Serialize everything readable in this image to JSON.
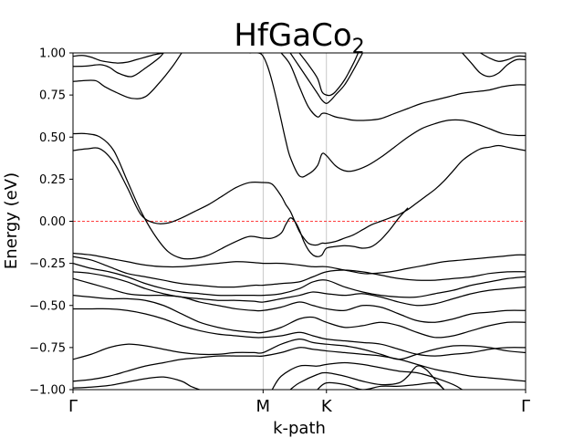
{
  "chart_data": {
    "type": "line",
    "title": "HfGaCo",
    "title_subscript": "2",
    "xlabel": "k-path",
    "ylabel": "Energy (eV)",
    "ylim": [
      -1.0,
      1.0
    ],
    "xlim": [
      0,
      1
    ],
    "x_ticks": [
      {
        "label": "Γ",
        "pos": 0.0
      },
      {
        "label": "M",
        "pos": 0.42
      },
      {
        "label": "K",
        "pos": 0.56
      },
      {
        "label": "Γ",
        "pos": 1.0
      }
    ],
    "y_ticks": [
      {
        "value": 1.0,
        "label": "1.00"
      },
      {
        "value": 0.75,
        "label": "0.75"
      },
      {
        "value": 0.5,
        "label": "0.50"
      },
      {
        "value": 0.25,
        "label": "0.25"
      },
      {
        "value": 0.0,
        "label": "0.00"
      },
      {
        "value": -0.25,
        "label": "−0.25"
      },
      {
        "value": -0.5,
        "label": "−0.50"
      },
      {
        "value": -0.75,
        "label": "−0.75"
      },
      {
        "value": -1.0,
        "label": "−1.00"
      }
    ],
    "fermi_level": 0.0,
    "fermi_color": "#ff0000",
    "vline_color": "#bbbbbb",
    "line_color": "#000000",
    "bands": [
      {
        "x": [
          0,
          0.02,
          0.04,
          0.06,
          0.08,
          0.1,
          0.12,
          0.14,
          0.16,
          0.18,
          0.2
        ],
        "y": [
          0.98,
          0.985,
          0.975,
          0.955,
          0.945,
          0.94,
          0.945,
          0.96,
          0.975,
          0.99,
          1.0
        ]
      },
      {
        "x": [
          0,
          0.03,
          0.06,
          0.08,
          0.1,
          0.13,
          0.16,
          0.19,
          0.2
        ],
        "y": [
          0.92,
          0.922,
          0.93,
          0.915,
          0.88,
          0.86,
          0.91,
          0.97,
          1.0
        ]
      },
      {
        "x": [
          0,
          0.02,
          0.05,
          0.07,
          0.1,
          0.13,
          0.16,
          0.19,
          0.22,
          0.24
        ],
        "y": [
          0.83,
          0.835,
          0.835,
          0.8,
          0.76,
          0.73,
          0.74,
          0.82,
          0.92,
          1.0
        ]
      },
      {
        "x": [
          0,
          0.03,
          0.06,
          0.09,
          0.12,
          0.15,
          0.18,
          0.21,
          0.24,
          0.27,
          0.3,
          0.33,
          0.36,
          0.39,
          0.42,
          0.44,
          0.46,
          0.47,
          0.48,
          0.49,
          0.5,
          0.51,
          0.52,
          0.53,
          0.54,
          0.55,
          0.56,
          0.58,
          0.6,
          0.62,
          0.64,
          0.66,
          0.68,
          0.7,
          0.72,
          0.74
        ],
        "y": [
          0.52,
          0.52,
          0.5,
          0.42,
          0.24,
          0.06,
          -0.08,
          -0.18,
          -0.22,
          -0.22,
          -0.2,
          -0.16,
          -0.12,
          -0.09,
          -0.1,
          -0.1,
          -0.07,
          -0.02,
          0.02,
          0.0,
          -0.05,
          -0.12,
          -0.17,
          -0.2,
          -0.21,
          -0.2,
          -0.16,
          -0.15,
          -0.145,
          -0.15,
          -0.16,
          -0.15,
          -0.11,
          -0.05,
          0.02,
          0.08
        ]
      },
      {
        "x": [
          0,
          0.03,
          0.06,
          0.09,
          0.12,
          0.15,
          0.18,
          0.21,
          0.24,
          0.27,
          0.3,
          0.33,
          0.36,
          0.39,
          0.42,
          0.44,
          0.46,
          0.47,
          0.48,
          0.49,
          0.5,
          0.51,
          0.52,
          0.53,
          0.54,
          0.55,
          0.56,
          0.58,
          0.6,
          0.62,
          0.64,
          0.66,
          0.68,
          0.7,
          0.72,
          0.74,
          0.76,
          0.78,
          0.8,
          0.82,
          0.84,
          0.86,
          0.88,
          0.9,
          0.92,
          0.94,
          0.96,
          0.98,
          1.0
        ],
        "y": [
          0.42,
          0.43,
          0.43,
          0.35,
          0.2,
          0.04,
          -0.01,
          -0.01,
          0.02,
          0.06,
          0.1,
          0.15,
          0.2,
          0.23,
          0.23,
          0.22,
          0.15,
          0.1,
          0.06,
          0.0,
          -0.06,
          -0.1,
          -0.13,
          -0.14,
          -0.14,
          -0.13,
          -0.13,
          -0.12,
          -0.1,
          -0.08,
          -0.05,
          -0.02,
          0.0,
          0.02,
          0.04,
          0.07,
          0.11,
          0.15,
          0.19,
          0.24,
          0.3,
          0.36,
          0.4,
          0.43,
          0.44,
          0.45,
          0.44,
          0.43,
          0.42
        ]
      },
      {
        "x": [
          0.39,
          0.41,
          0.42,
          0.43,
          0.44,
          0.45,
          0.46,
          0.47,
          0.48,
          0.5,
          0.52,
          0.54,
          0.55,
          0.56,
          0.58,
          0.6,
          0.62,
          0.65,
          0.68,
          0.71,
          0.74,
          0.77,
          0.8,
          0.83,
          0.86,
          0.89,
          0.92,
          0.95,
          0.98,
          1.0
        ],
        "y": [
          1.0,
          1.0,
          0.98,
          0.92,
          0.83,
          0.72,
          0.6,
          0.48,
          0.38,
          0.27,
          0.28,
          0.33,
          0.4,
          0.39,
          0.33,
          0.3,
          0.3,
          0.33,
          0.38,
          0.44,
          0.5,
          0.55,
          0.58,
          0.6,
          0.6,
          0.58,
          0.55,
          0.52,
          0.51,
          0.51
        ]
      },
      {
        "x": [
          0.46,
          0.48,
          0.5,
          0.52,
          0.54,
          0.55,
          0.56,
          0.58,
          0.6,
          0.62,
          0.65,
          0.68,
          0.71,
          0.74,
          0.77,
          0.8,
          0.83,
          0.86,
          0.89,
          0.92,
          0.95,
          0.98,
          1.0
        ],
        "y": [
          1.0,
          0.93,
          0.8,
          0.68,
          0.62,
          0.64,
          0.64,
          0.62,
          0.61,
          0.6,
          0.6,
          0.61,
          0.64,
          0.67,
          0.7,
          0.72,
          0.74,
          0.76,
          0.77,
          0.78,
          0.8,
          0.81,
          0.81
        ]
      },
      {
        "x": [
          0.48,
          0.5,
          0.52,
          0.54,
          0.55,
          0.56,
          0.57,
          0.58,
          0.6,
          0.62,
          0.64
        ],
        "y": [
          1.0,
          0.92,
          0.84,
          0.76,
          0.72,
          0.7,
          0.72,
          0.75,
          0.81,
          0.9,
          1.0
        ]
      },
      {
        "x": [
          0.5,
          0.52,
          0.54,
          0.55,
          0.56,
          0.57,
          0.58,
          0.6,
          0.62,
          0.63
        ],
        "y": [
          1.0,
          0.93,
          0.85,
          0.77,
          0.75,
          0.75,
          0.77,
          0.84,
          0.94,
          1.0
        ]
      },
      {
        "x": [
          0.86,
          0.88,
          0.9,
          0.92,
          0.94,
          0.96,
          0.98,
          1.0
        ],
        "y": [
          1.0,
          0.94,
          0.88,
          0.86,
          0.88,
          0.93,
          0.96,
          0.96
        ]
      },
      {
        "x": [
          0.9,
          0.92,
          0.94,
          0.96,
          0.98,
          1.0
        ],
        "y": [
          1.0,
          0.97,
          0.95,
          0.96,
          0.98,
          0.98
        ]
      },
      {
        "x": [
          0,
          0.04,
          0.08,
          0.12,
          0.16,
          0.2,
          0.24,
          0.28,
          0.32,
          0.36,
          0.4,
          0.42,
          0.46,
          0.5,
          0.53,
          0.56,
          0.6,
          0.64,
          0.66,
          0.7,
          0.74,
          0.78,
          0.82,
          0.86,
          0.9,
          0.94,
          0.98,
          1.0
        ],
        "y": [
          -0.19,
          -0.2,
          -0.22,
          -0.24,
          -0.26,
          -0.27,
          -0.27,
          -0.26,
          -0.25,
          -0.24,
          -0.245,
          -0.25,
          -0.25,
          -0.26,
          -0.27,
          -0.27,
          -0.29,
          -0.31,
          -0.31,
          -0.3,
          -0.28,
          -0.26,
          -0.24,
          -0.23,
          -0.22,
          -0.21,
          -0.2,
          -0.2
        ]
      },
      {
        "x": [
          0,
          0.04,
          0.08,
          0.12,
          0.16,
          0.2,
          0.24,
          0.28,
          0.32,
          0.36,
          0.4,
          0.42,
          0.46,
          0.5,
          0.53,
          0.56,
          0.6,
          0.64,
          0.68,
          0.72,
          0.76,
          0.8,
          0.84,
          0.88,
          0.92,
          0.96,
          1.0
        ],
        "y": [
          -0.21,
          -0.23,
          -0.27,
          -0.31,
          -0.33,
          -0.35,
          -0.37,
          -0.38,
          -0.39,
          -0.39,
          -0.38,
          -0.38,
          -0.37,
          -0.36,
          -0.33,
          -0.3,
          -0.29,
          -0.3,
          -0.32,
          -0.34,
          -0.35,
          -0.35,
          -0.34,
          -0.33,
          -0.31,
          -0.3,
          -0.3
        ]
      },
      {
        "x": [
          0,
          0.04,
          0.08,
          0.12,
          0.16,
          0.2,
          0.24,
          0.28,
          0.32,
          0.36,
          0.4,
          0.42,
          0.46,
          0.5,
          0.53,
          0.56,
          0.6,
          0.64,
          0.68,
          0.72,
          0.76,
          0.8,
          0.84,
          0.88,
          0.92,
          0.96,
          1.0
        ],
        "y": [
          -0.25,
          -0.28,
          -0.3,
          -0.33,
          -0.37,
          -0.4,
          -0.42,
          -0.43,
          -0.44,
          -0.44,
          -0.44,
          -0.44,
          -0.43,
          -0.4,
          -0.36,
          -0.35,
          -0.39,
          -0.42,
          -0.44,
          -0.45,
          -0.45,
          -0.43,
          -0.41,
          -0.38,
          -0.36,
          -0.34,
          -0.33
        ]
      },
      {
        "x": [
          0,
          0.04,
          0.08,
          0.12,
          0.16,
          0.2,
          0.24,
          0.28,
          0.32,
          0.36,
          0.4,
          0.42,
          0.46,
          0.5,
          0.53,
          0.56,
          0.6,
          0.64,
          0.68,
          0.72,
          0.76,
          0.8,
          0.84,
          0.88,
          0.92,
          0.96,
          1.0
        ],
        "y": [
          -0.3,
          -0.31,
          -0.33,
          -0.36,
          -0.4,
          -0.43,
          -0.45,
          -0.46,
          -0.47,
          -0.47,
          -0.475,
          -0.48,
          -0.46,
          -0.44,
          -0.42,
          -0.43,
          -0.44,
          -0.43,
          -0.45,
          -0.48,
          -0.5,
          -0.49,
          -0.46,
          -0.43,
          -0.41,
          -0.4,
          -0.39
        ]
      },
      {
        "x": [
          0,
          0.04,
          0.08,
          0.12,
          0.16,
          0.2,
          0.24,
          0.28,
          0.32,
          0.36,
          0.4,
          0.42,
          0.46,
          0.5,
          0.53,
          0.56,
          0.6,
          0.64,
          0.68,
          0.72,
          0.76,
          0.8,
          0.84,
          0.88,
          0.92,
          0.96,
          1.0
        ],
        "y": [
          -0.34,
          -0.37,
          -0.4,
          -0.43,
          -0.44,
          -0.44,
          -0.45,
          -0.48,
          -0.5,
          -0.52,
          -0.53,
          -0.53,
          -0.51,
          -0.48,
          -0.5,
          -0.52,
          -0.53,
          -0.5,
          -0.51,
          -0.55,
          -0.59,
          -0.6,
          -0.58,
          -0.55,
          -0.54,
          -0.53,
          -0.53
        ]
      },
      {
        "x": [
          0,
          0.04,
          0.08,
          0.12,
          0.16,
          0.2,
          0.24,
          0.28,
          0.32,
          0.36,
          0.4,
          0.42,
          0.46,
          0.5,
          0.53,
          0.56,
          0.6,
          0.64,
          0.68,
          0.72,
          0.76,
          0.8,
          0.84,
          0.88,
          0.92,
          0.96,
          1.0
        ],
        "y": [
          -0.44,
          -0.45,
          -0.46,
          -0.46,
          -0.47,
          -0.5,
          -0.55,
          -0.6,
          -0.63,
          -0.65,
          -0.66,
          -0.66,
          -0.63,
          -0.58,
          -0.57,
          -0.6,
          -0.63,
          -0.62,
          -0.6,
          -0.62,
          -0.66,
          -0.69,
          -0.68,
          -0.65,
          -0.62,
          -0.6,
          -0.6
        ]
      },
      {
        "x": [
          0,
          0.04,
          0.08,
          0.12,
          0.16,
          0.2,
          0.24,
          0.28,
          0.32,
          0.36,
          0.4,
          0.42,
          0.46,
          0.5,
          0.53,
          0.56,
          0.6,
          0.64,
          0.68,
          0.72,
          0.76,
          0.8,
          0.84,
          0.88,
          0.92,
          0.96,
          1.0
        ],
        "y": [
          -0.52,
          -0.52,
          -0.52,
          -0.53,
          -0.55,
          -0.58,
          -0.62,
          -0.65,
          -0.67,
          -0.68,
          -0.69,
          -0.69,
          -0.68,
          -0.66,
          -0.68,
          -0.7,
          -0.71,
          -0.72,
          -0.73,
          -0.76,
          -0.79,
          -0.8,
          -0.79,
          -0.78,
          -0.76,
          -0.75,
          -0.75
        ]
      },
      {
        "x": [
          0,
          0.04,
          0.08,
          0.12,
          0.16,
          0.2,
          0.24,
          0.28,
          0.32,
          0.36,
          0.4,
          0.42,
          0.46,
          0.5,
          0.53,
          0.56,
          0.6,
          0.64,
          0.68,
          0.72,
          0.76,
          0.8,
          0.84,
          0.88,
          0.92,
          0.96,
          1.0
        ],
        "y": [
          -0.82,
          -0.79,
          -0.75,
          -0.73,
          -0.74,
          -0.76,
          -0.78,
          -0.79,
          -0.79,
          -0.78,
          -0.78,
          -0.78,
          -0.73,
          -0.7,
          -0.72,
          -0.73,
          -0.74,
          -0.76,
          -0.79,
          -0.82,
          -0.79,
          -0.76,
          -0.74,
          -0.74,
          -0.75,
          -0.77,
          -0.78
        ]
      },
      {
        "x": [
          0,
          0.04,
          0.08,
          0.12,
          0.16,
          0.2,
          0.24,
          0.28,
          0.32,
          0.36,
          0.4,
          0.42,
          0.46,
          0.5,
          0.53,
          0.56,
          0.6,
          0.64,
          0.68,
          0.72,
          0.76,
          0.8,
          0.84,
          0.88,
          0.92,
          0.96,
          1.0
        ],
        "y": [
          -0.95,
          -0.94,
          -0.92,
          -0.89,
          -0.86,
          -0.84,
          -0.82,
          -0.81,
          -0.8,
          -0.8,
          -0.8,
          -0.8,
          -0.78,
          -0.75,
          -0.76,
          -0.77,
          -0.78,
          -0.79,
          -0.8,
          -0.82,
          -0.85,
          -0.88,
          -0.9,
          -0.92,
          -0.93,
          -0.94,
          -0.95
        ]
      },
      {
        "x": [
          0,
          0.04,
          0.08,
          0.12,
          0.16,
          0.2,
          0.24,
          0.26,
          0.28
        ],
        "y": [
          -0.99,
          -0.985,
          -0.975,
          -0.955,
          -0.935,
          -0.925,
          -0.95,
          -0.98,
          -1.0
        ]
      },
      {
        "x": [
          0.44,
          0.46,
          0.5,
          0.54,
          0.56,
          0.6,
          0.64,
          0.68,
          0.72,
          0.76,
          0.8,
          0.84,
          0.86
        ],
        "y": [
          -1.0,
          -0.92,
          -0.86,
          -0.86,
          -0.85,
          -0.84,
          -0.85,
          -0.87,
          -0.89,
          -0.9,
          -0.93,
          -0.97,
          -1.0
        ]
      },
      {
        "x": [
          0.48,
          0.5,
          0.54,
          0.56,
          0.6,
          0.64,
          0.68,
          0.72,
          0.74,
          0.76,
          0.78,
          0.8,
          0.82
        ],
        "y": [
          -1.0,
          -0.96,
          -0.91,
          -0.9,
          -0.92,
          -0.95,
          -0.97,
          -0.96,
          -0.92,
          -0.86,
          -0.88,
          -0.94,
          -1.0
        ]
      },
      {
        "x": [
          0.54,
          0.56,
          0.6,
          0.64,
          0.68,
          0.72,
          0.76,
          0.8,
          0.82
        ],
        "y": [
          -1.0,
          -0.96,
          -0.97,
          -1.0,
          -0.98,
          -0.98,
          -0.97,
          -0.96,
          -1.0
        ]
      }
    ]
  }
}
